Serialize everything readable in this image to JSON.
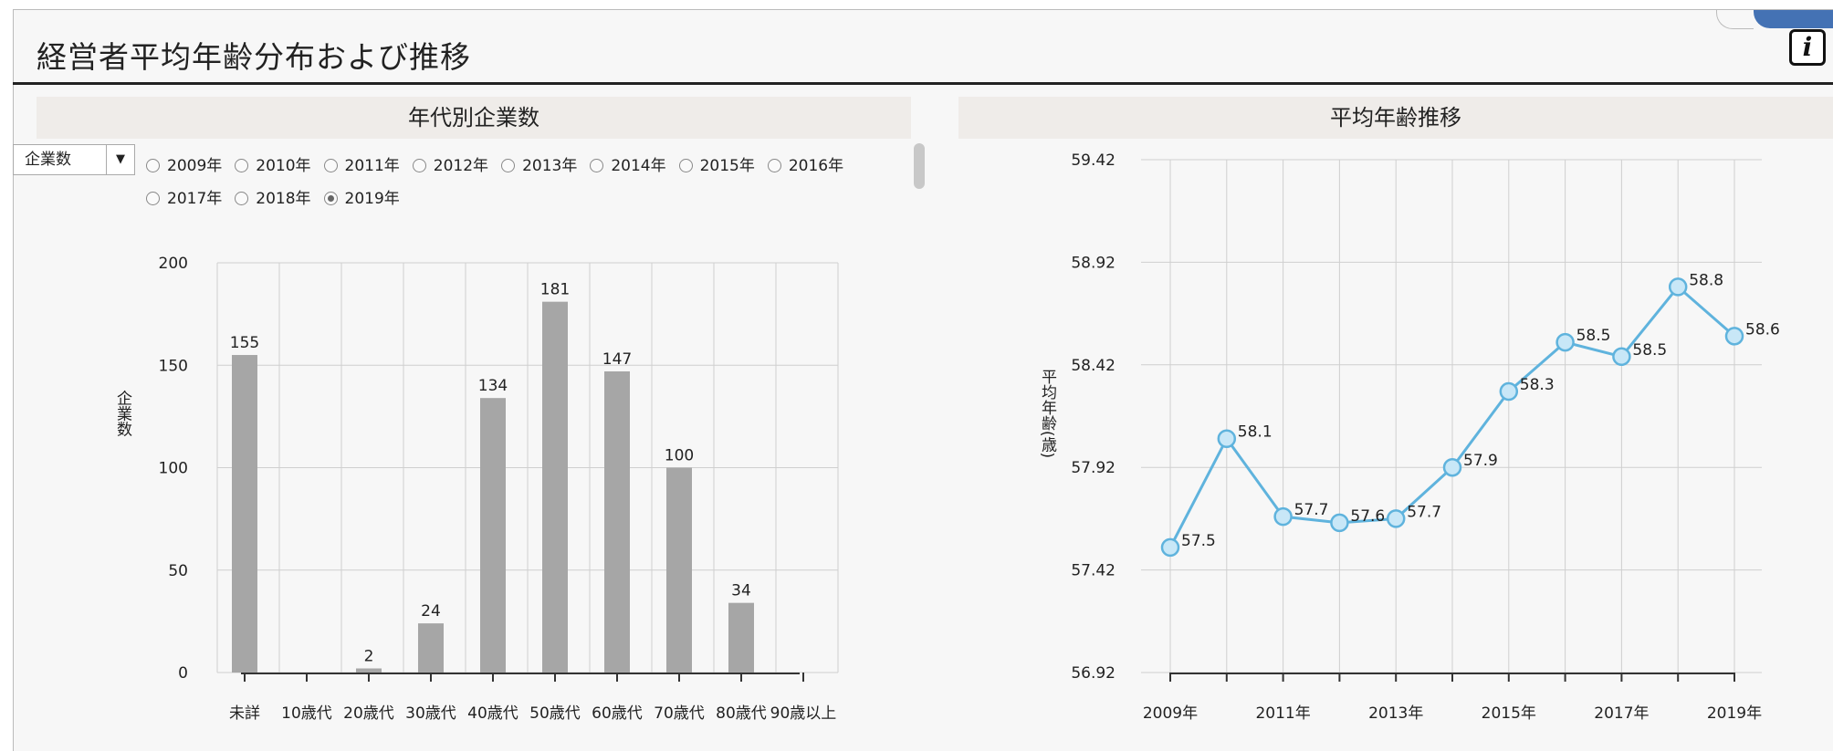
{
  "page": {
    "title": "経営者平均年齢分布および推移",
    "info_icon": "i"
  },
  "left_panel": {
    "heading": "年代別企業数",
    "metric_select": "企業数",
    "year_options": [
      "2009年",
      "2010年",
      "2011年",
      "2012年",
      "2013年",
      "2014年",
      "2015年",
      "2016年",
      "2017年",
      "2018年",
      "2019年"
    ],
    "selected_year": "2019年"
  },
  "right_panel": {
    "heading": "平均年齢推移"
  },
  "colors": {
    "bar": "#a6a6a6",
    "line": "#5fb3dd",
    "marker_fill": "#c8e7f7",
    "grid": "#cfcfcf"
  },
  "chart_data": [
    {
      "type": "bar",
      "title": "年代別企業数",
      "categories": [
        "未詳",
        "10歳代",
        "20歳代",
        "30歳代",
        "40歳代",
        "50歳代",
        "60歳代",
        "70歳代",
        "80歳代",
        "90歳以上"
      ],
      "values": [
        155,
        null,
        2,
        24,
        134,
        181,
        147,
        100,
        34,
        null
      ],
      "data_labels": [
        "155",
        "",
        "2",
        "24",
        "134",
        "181",
        "147",
        "100",
        "34",
        ""
      ],
      "ylabel": "企業数",
      "ylim": [
        0,
        200
      ],
      "yticks": [
        0,
        50,
        100,
        150,
        200
      ],
      "grid": true
    },
    {
      "type": "line",
      "title": "平均年齢推移",
      "x": [
        2009,
        2010,
        2011,
        2012,
        2013,
        2014,
        2015,
        2016,
        2017,
        2018,
        2019
      ],
      "xtick_labels": [
        "2009年",
        "",
        "2011年",
        "",
        "2013年",
        "",
        "2015年",
        "",
        "2017年",
        "",
        "2019年"
      ],
      "values": [
        57.53,
        58.06,
        57.68,
        57.65,
        57.67,
        57.92,
        58.29,
        58.53,
        58.46,
        58.8,
        58.56
      ],
      "data_labels": [
        "57.5",
        "58.1",
        "57.7",
        "57.6",
        "57.7",
        "57.9",
        "58.3",
        "58.5",
        "58.5",
        "58.8",
        "58.6"
      ],
      "ylabel": "平均年齢(歳)",
      "ylim": [
        56.92,
        59.42
      ],
      "yticks": [
        "56.92",
        "57.42",
        "57.92",
        "58.42",
        "58.92",
        "59.42"
      ],
      "grid": true
    }
  ]
}
